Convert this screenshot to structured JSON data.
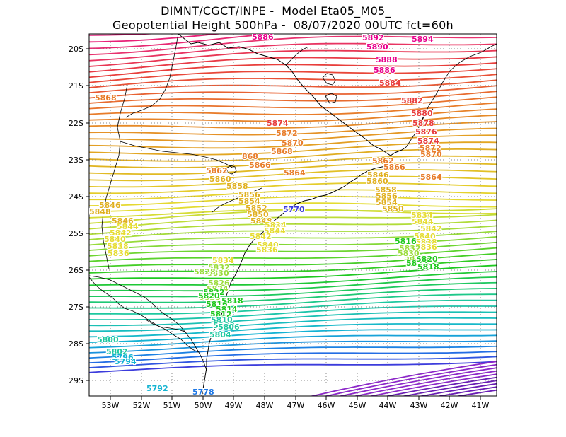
{
  "title": {
    "line1": "DIMNT/CGCT/INPE -  Model Eta05_M05_",
    "line2": "Geopotential Height 500hPa -  08/07/2020 00UTC fct=60h"
  },
  "axes": {
    "x_ticks": [
      "53W",
      "52W",
      "51W",
      "50W",
      "49W",
      "48W",
      "47W",
      "46W",
      "45W",
      "44W",
      "43W",
      "42W",
      "41W"
    ],
    "y_ticks": [
      "20S",
      "21S",
      "22S",
      "23S",
      "24S",
      "25S",
      "26S",
      "27S",
      "28S",
      "29S"
    ]
  },
  "colors": {
    "magenta": "#e8008c",
    "red": "#e83c3c",
    "orange": "#e87d2a",
    "gold": "#e0b020",
    "yellow": "#e6dc32",
    "lightgreen": "#9bdc3c",
    "green": "#1ec81e",
    "teal": "#1ec8a0",
    "cyan": "#14b4d2",
    "blue": "#1e78e6",
    "purple": "#8c28c8"
  },
  "contour_labels": [
    {
      "text": "5886",
      "color": "#e8008c"
    },
    {
      "text": "5892",
      "color": "#e8008c"
    },
    {
      "text": "5894",
      "color": "#e8008c"
    },
    {
      "text": "5890",
      "color": "#e8008c"
    },
    {
      "text": "5888",
      "color": "#e8008c"
    },
    {
      "text": "5886",
      "color": "#e8008c"
    },
    {
      "text": "5884",
      "color": "#e83c3c"
    },
    {
      "text": "5882",
      "color": "#e83c3c"
    },
    {
      "text": "5880",
      "color": "#e83c3c"
    },
    {
      "text": "5878",
      "color": "#e83c3c"
    },
    {
      "text": "5876",
      "color": "#e83c3c"
    },
    {
      "text": "5874",
      "color": "#e83c3c"
    },
    {
      "text": "5874",
      "color": "#e83c3c"
    },
    {
      "text": "5872",
      "color": "#e87d2a"
    },
    {
      "text": "5870",
      "color": "#e87d2a"
    },
    {
      "text": "5868",
      "color": "#e87d2a"
    },
    {
      "text": "5872",
      "color": "#e87d2a"
    },
    {
      "text": "5870",
      "color": "#e87d2a"
    },
    {
      "text": "5868",
      "color": "#e87d2a"
    },
    {
      "text": "868",
      "color": "#e87d2a"
    },
    {
      "text": "5866",
      "color": "#e87d2a"
    },
    {
      "text": "5864",
      "color": "#e87d2a"
    },
    {
      "text": "5862",
      "color": "#e87d2a"
    },
    {
      "text": "5866",
      "color": "#e87d2a"
    },
    {
      "text": "5864",
      "color": "#e87d2a"
    },
    {
      "text": "5862",
      "color": "#e87d2a"
    },
    {
      "text": "5860",
      "color": "#e0b020"
    },
    {
      "text": "5858",
      "color": "#e0b020"
    },
    {
      "text": "5856",
      "color": "#e0b020"
    },
    {
      "text": "5854",
      "color": "#e0b020"
    },
    {
      "text": "5852",
      "color": "#e0b020"
    },
    {
      "text": "5850",
      "color": "#e0b020"
    },
    {
      "text": "5848",
      "color": "#e0b020"
    },
    {
      "text": "5846",
      "color": "#e0b020"
    },
    {
      "text": "5860",
      "color": "#e0b020"
    },
    {
      "text": "5858",
      "color": "#e0b020"
    },
    {
      "text": "5856",
      "color": "#e0b020"
    },
    {
      "text": "5854",
      "color": "#e0b020"
    },
    {
      "text": "5850",
      "color": "#e0b020"
    },
    {
      "text": "5846",
      "color": "#e0b020"
    },
    {
      "text": "5848",
      "color": "#e0b020"
    },
    {
      "text": "5846",
      "color": "#e0b020"
    },
    {
      "text": "5844",
      "color": "#e6dc32"
    },
    {
      "text": "5842",
      "color": "#e6dc32"
    },
    {
      "text": "5840",
      "color": "#e6dc32"
    },
    {
      "text": "5838",
      "color": "#e6dc32"
    },
    {
      "text": "5836",
      "color": "#e6dc32"
    },
    {
      "text": "5834",
      "color": "#e6dc32"
    },
    {
      "text": "5844",
      "color": "#e6dc32"
    },
    {
      "text": "5842",
      "color": "#e6dc32"
    },
    {
      "text": "5840",
      "color": "#e6dc32"
    },
    {
      "text": "5838",
      "color": "#e6dc32"
    },
    {
      "text": "5836",
      "color": "#e6dc32"
    },
    {
      "text": "5834",
      "color": "#e6dc32"
    },
    {
      "text": "5844",
      "color": "#e6dc32"
    },
    {
      "text": "5842",
      "color": "#e6dc32"
    },
    {
      "text": "5840",
      "color": "#e6dc32"
    },
    {
      "text": "5836",
      "color": "#e6dc32"
    },
    {
      "text": "5834",
      "color": "#e6dc32"
    },
    {
      "text": "5832",
      "color": "#9bdc3c"
    },
    {
      "text": "5830",
      "color": "#9bdc3c"
    },
    {
      "text": "5828",
      "color": "#9bdc3c"
    },
    {
      "text": "5826",
      "color": "#9bdc3c"
    },
    {
      "text": "5824",
      "color": "#9bdc3c"
    },
    {
      "text": "5822",
      "color": "#1ec81e"
    },
    {
      "text": "5820",
      "color": "#1ec81e"
    },
    {
      "text": "5818",
      "color": "#1ec81e"
    },
    {
      "text": "5816",
      "color": "#1ec81e"
    },
    {
      "text": "5832",
      "color": "#9bdc3c"
    },
    {
      "text": "5830",
      "color": "#9bdc3c"
    },
    {
      "text": "5828",
      "color": "#9bdc3c"
    },
    {
      "text": "5824",
      "color": "#9bdc3c"
    },
    {
      "text": "5822",
      "color": "#1ec81e"
    },
    {
      "text": "5820",
      "color": "#1ec81e"
    },
    {
      "text": "5818",
      "color": "#1ec81e"
    },
    {
      "text": "5816",
      "color": "#1ec81e"
    },
    {
      "text": "5814",
      "color": "#1ec81e"
    },
    {
      "text": "5812",
      "color": "#1ec81e"
    },
    {
      "text": "5810",
      "color": "#1ec8a0"
    },
    {
      "text": "5808",
      "color": "#1ec8a0"
    },
    {
      "text": "5806",
      "color": "#1ec8a0"
    },
    {
      "text": "5804",
      "color": "#1ec8a0"
    },
    {
      "text": "5800",
      "color": "#1ec8a0"
    },
    {
      "text": "5802",
      "color": "#1ec8a0"
    },
    {
      "text": "5796",
      "color": "#14b4d2"
    },
    {
      "text": "5794",
      "color": "#14b4d2"
    },
    {
      "text": "5792",
      "color": "#14b4d2"
    },
    {
      "text": "5778",
      "color": "#1e78e6"
    },
    {
      "text": "5770",
      "color": "#3c3cdc"
    }
  ]
}
